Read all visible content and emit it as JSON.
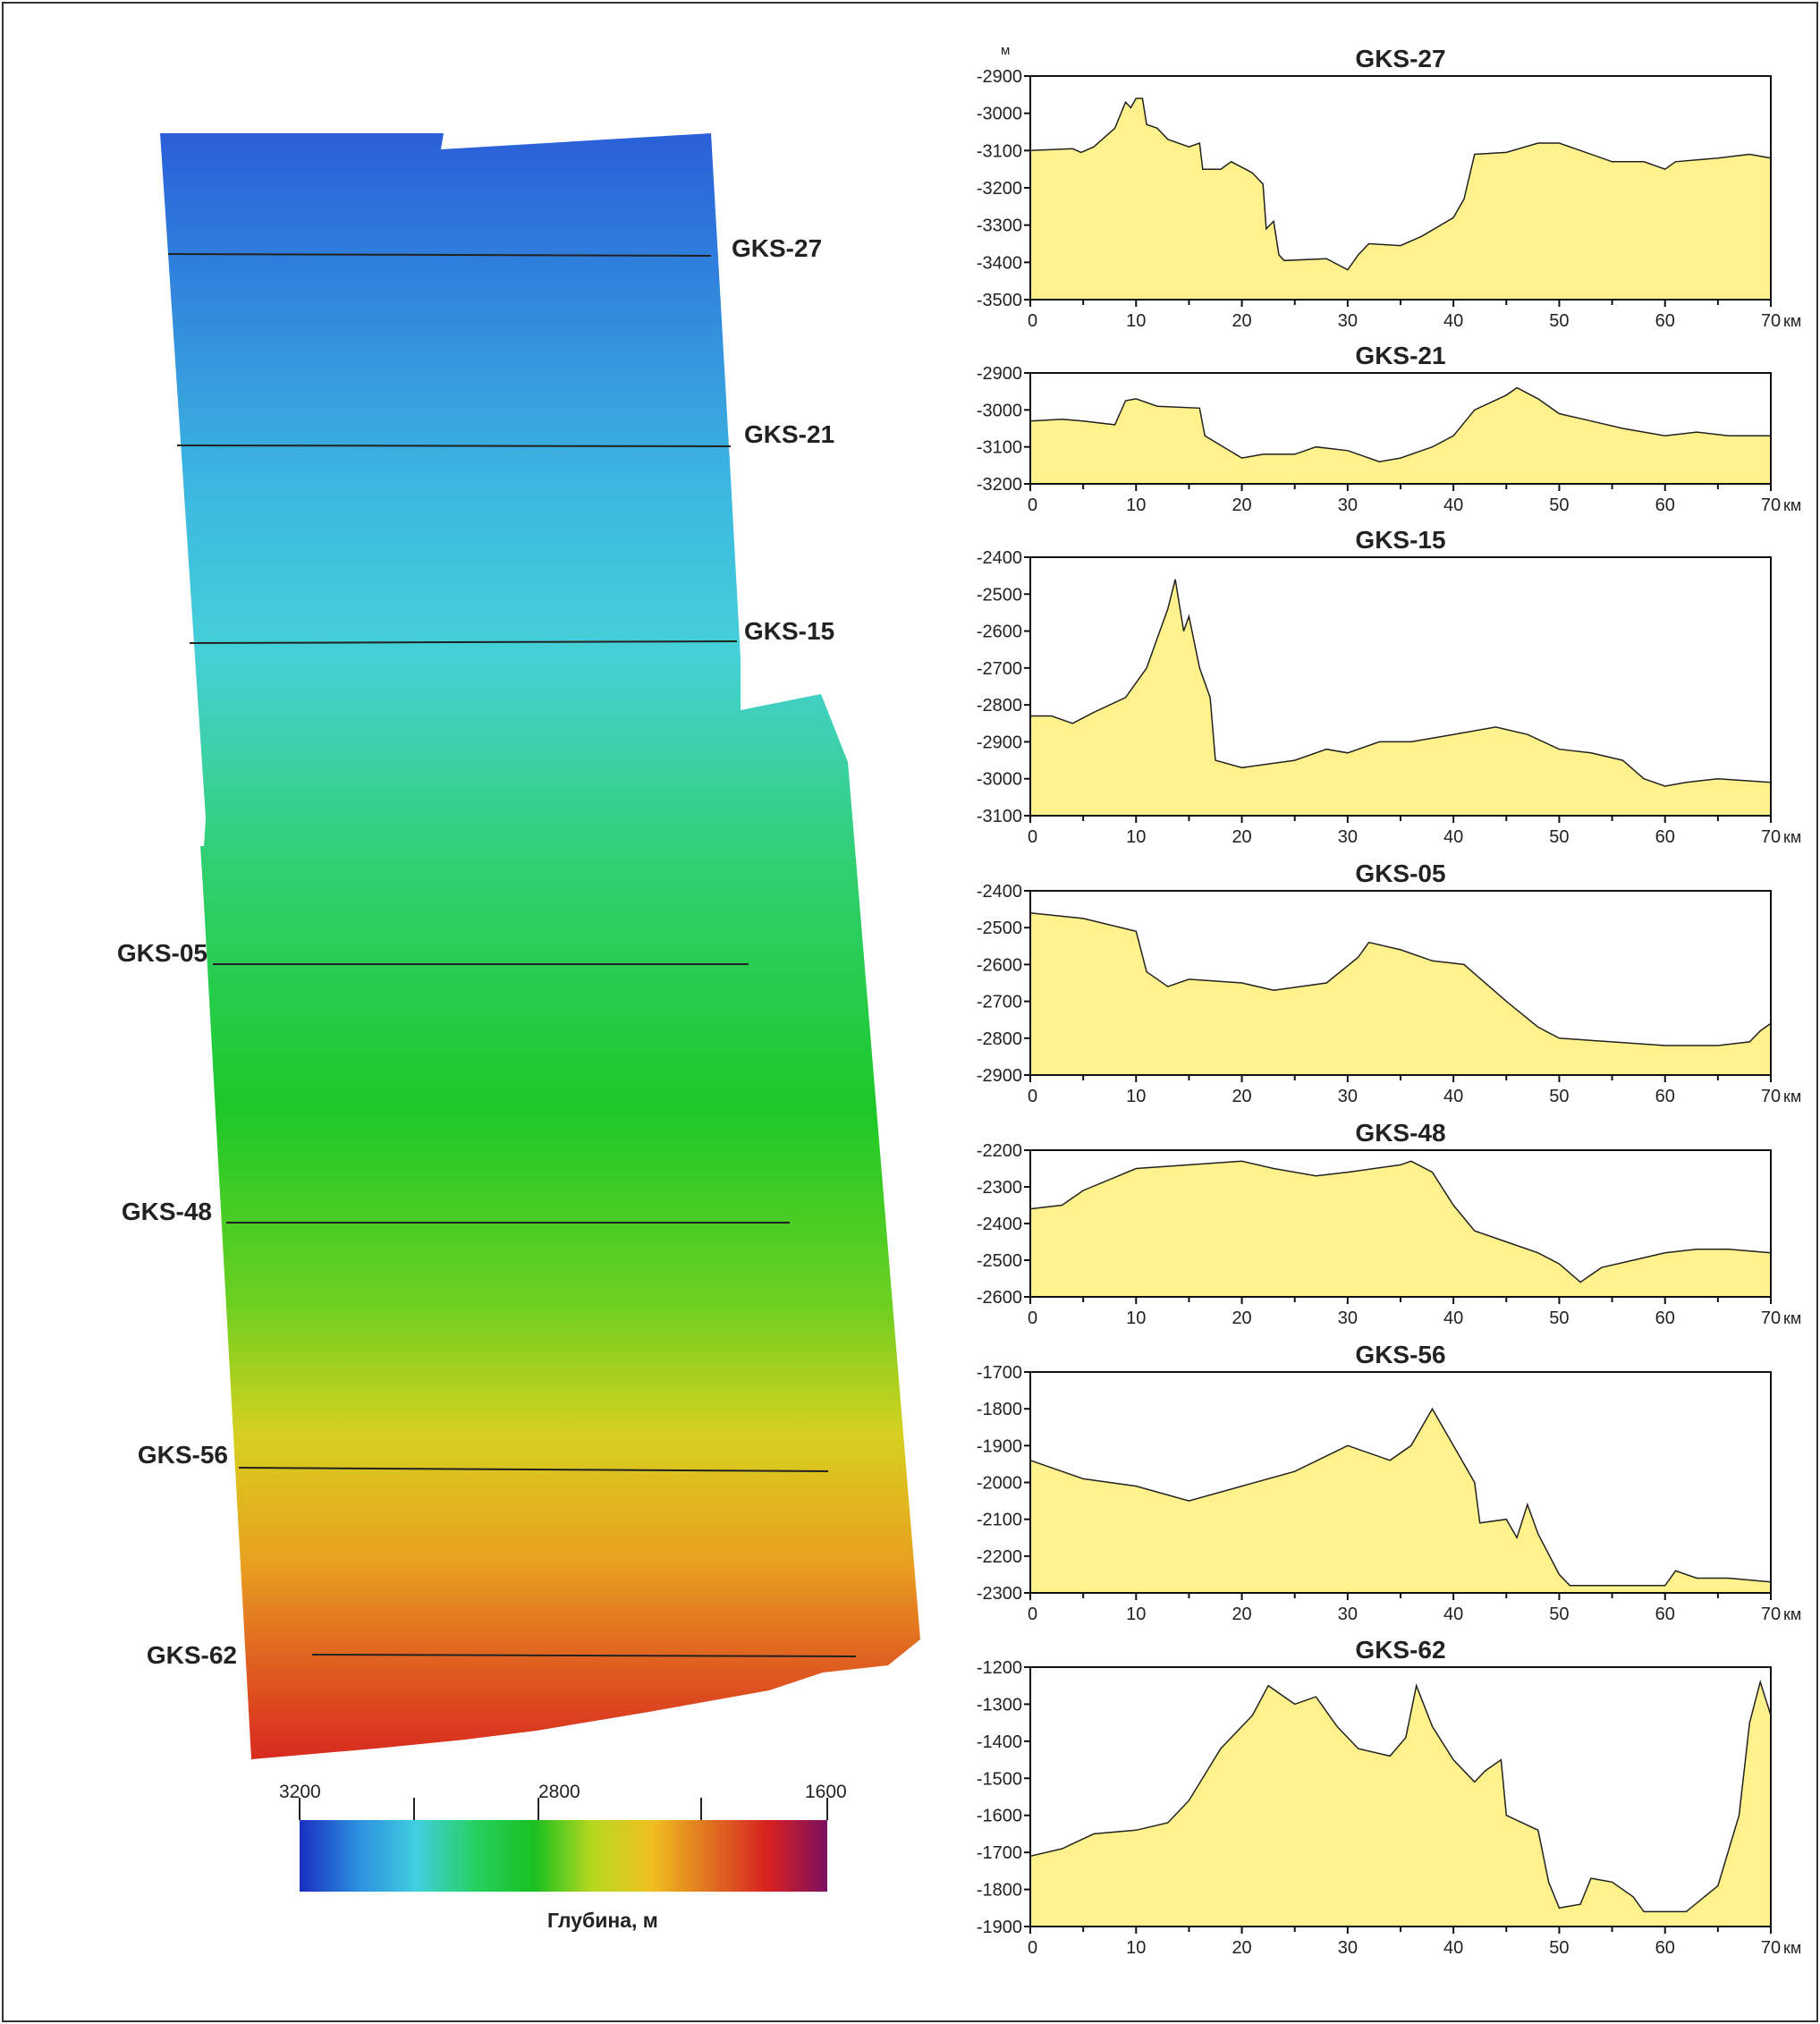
{
  "map": {
    "profiles": [
      "GKS-27",
      "GKS-21",
      "GKS-15",
      "GKS-05",
      "GKS-48",
      "GKS-56",
      "GKS-62"
    ],
    "colorbar": {
      "ticks": [
        "3200",
        "2800",
        "1600"
      ],
      "label": "Глубина, м",
      "colors": [
        "#1a2fc0",
        "#2c8fe0",
        "#40cfe0",
        "#26d060",
        "#18c020",
        "#b8d820",
        "#f0c020",
        "#e07020",
        "#d82020",
        "#7a1060"
      ]
    }
  },
  "unit_label": "м",
  "x_unit": "км",
  "colors": {
    "fill": "#fff28c",
    "stroke": "#222222"
  },
  "chart_data": [
    {
      "type": "area",
      "title": "GKS-27",
      "xlim": [
        0,
        70
      ],
      "ylim": [
        -3500,
        -2900
      ],
      "points": [
        [
          0,
          -3100
        ],
        [
          4,
          -3095
        ],
        [
          4.8,
          -3105
        ],
        [
          6,
          -3090
        ],
        [
          8,
          -3040
        ],
        [
          9,
          -2970
        ],
        [
          9.5,
          -2985
        ],
        [
          10,
          -2960
        ],
        [
          10.6,
          -2960
        ],
        [
          11,
          -3030
        ],
        [
          12,
          -3040
        ],
        [
          13,
          -3070
        ],
        [
          15,
          -3090
        ],
        [
          16,
          -3080
        ],
        [
          16.3,
          -3150
        ],
        [
          18,
          -3150
        ],
        [
          19,
          -3130
        ],
        [
          21,
          -3160
        ],
        [
          22,
          -3190
        ],
        [
          22.3,
          -3310
        ],
        [
          23,
          -3290
        ],
        [
          23.5,
          -3380
        ],
        [
          24,
          -3395
        ],
        [
          28,
          -3390
        ],
        [
          30,
          -3420
        ],
        [
          31,
          -3380
        ],
        [
          32,
          -3350
        ],
        [
          35,
          -3355
        ],
        [
          37,
          -3330
        ],
        [
          40,
          -3280
        ],
        [
          41,
          -3230
        ],
        [
          42,
          -3110
        ],
        [
          45,
          -3105
        ],
        [
          48,
          -3080
        ],
        [
          50,
          -3080
        ],
        [
          52,
          -3100
        ],
        [
          55,
          -3130
        ],
        [
          58,
          -3130
        ],
        [
          60,
          -3150
        ],
        [
          61,
          -3130
        ],
        [
          65,
          -3120
        ],
        [
          68,
          -3110
        ],
        [
          70,
          -3120
        ]
      ]
    },
    {
      "type": "area",
      "title": "GKS-21",
      "xlim": [
        0,
        70
      ],
      "ylim": [
        -3200,
        -2900
      ],
      "points": [
        [
          0,
          -3030
        ],
        [
          3,
          -3025
        ],
        [
          5,
          -3030
        ],
        [
          8,
          -3040
        ],
        [
          9,
          -2975
        ],
        [
          10,
          -2970
        ],
        [
          12,
          -2990
        ],
        [
          16,
          -2995
        ],
        [
          16.5,
          -3070
        ],
        [
          20,
          -3130
        ],
        [
          22,
          -3120
        ],
        [
          25,
          -3120
        ],
        [
          27,
          -3100
        ],
        [
          30,
          -3110
        ],
        [
          33,
          -3140
        ],
        [
          35,
          -3130
        ],
        [
          38,
          -3100
        ],
        [
          40,
          -3070
        ],
        [
          42,
          -3000
        ],
        [
          45,
          -2960
        ],
        [
          46,
          -2940
        ],
        [
          48,
          -2970
        ],
        [
          50,
          -3010
        ],
        [
          53,
          -3030
        ],
        [
          56,
          -3050
        ],
        [
          60,
          -3070
        ],
        [
          63,
          -3060
        ],
        [
          66,
          -3070
        ],
        [
          70,
          -3070
        ]
      ]
    },
    {
      "type": "area",
      "title": "GKS-15",
      "xlim": [
        0,
        70
      ],
      "ylim": [
        -3100,
        -2400
      ],
      "points": [
        [
          0,
          -2830
        ],
        [
          2,
          -2830
        ],
        [
          4,
          -2850
        ],
        [
          6,
          -2820
        ],
        [
          9,
          -2780
        ],
        [
          11,
          -2700
        ],
        [
          12,
          -2620
        ],
        [
          13,
          -2540
        ],
        [
          13.7,
          -2460
        ],
        [
          14.5,
          -2600
        ],
        [
          15,
          -2560
        ],
        [
          16,
          -2700
        ],
        [
          17,
          -2780
        ],
        [
          17.5,
          -2950
        ],
        [
          20,
          -2970
        ],
        [
          25,
          -2950
        ],
        [
          28,
          -2920
        ],
        [
          30,
          -2930
        ],
        [
          33,
          -2900
        ],
        [
          36,
          -2900
        ],
        [
          40,
          -2880
        ],
        [
          44,
          -2860
        ],
        [
          47,
          -2880
        ],
        [
          50,
          -2920
        ],
        [
          53,
          -2930
        ],
        [
          56,
          -2950
        ],
        [
          58,
          -3000
        ],
        [
          60,
          -3020
        ],
        [
          62,
          -3010
        ],
        [
          65,
          -3000
        ],
        [
          70,
          -3010
        ]
      ]
    },
    {
      "type": "area",
      "title": "GKS-05",
      "xlim": [
        0,
        70
      ],
      "ylim": [
        -2900,
        -2400
      ],
      "points": [
        [
          0,
          -2460
        ],
        [
          5,
          -2475
        ],
        [
          10,
          -2510
        ],
        [
          11,
          -2620
        ],
        [
          13,
          -2660
        ],
        [
          15,
          -2640
        ],
        [
          20,
          -2650
        ],
        [
          23,
          -2670
        ],
        [
          28,
          -2650
        ],
        [
          31,
          -2580
        ],
        [
          32,
          -2540
        ],
        [
          35,
          -2560
        ],
        [
          38,
          -2590
        ],
        [
          41,
          -2600
        ],
        [
          45,
          -2700
        ],
        [
          48,
          -2770
        ],
        [
          50,
          -2800
        ],
        [
          55,
          -2810
        ],
        [
          60,
          -2820
        ],
        [
          65,
          -2820
        ],
        [
          68,
          -2810
        ],
        [
          69,
          -2780
        ],
        [
          70,
          -2760
        ]
      ]
    },
    {
      "type": "area",
      "title": "GKS-48",
      "xlim": [
        0,
        70
      ],
      "ylim": [
        -2600,
        -2200
      ],
      "points": [
        [
          0,
          -2360
        ],
        [
          3,
          -2350
        ],
        [
          5,
          -2310
        ],
        [
          10,
          -2250
        ],
        [
          15,
          -2240
        ],
        [
          20,
          -2230
        ],
        [
          23,
          -2250
        ],
        [
          27,
          -2270
        ],
        [
          30,
          -2260
        ],
        [
          35,
          -2240
        ],
        [
          36,
          -2230
        ],
        [
          38,
          -2260
        ],
        [
          40,
          -2350
        ],
        [
          42,
          -2420
        ],
        [
          45,
          -2450
        ],
        [
          48,
          -2480
        ],
        [
          50,
          -2510
        ],
        [
          52,
          -2560
        ],
        [
          54,
          -2520
        ],
        [
          57,
          -2500
        ],
        [
          60,
          -2480
        ],
        [
          63,
          -2470
        ],
        [
          66,
          -2470
        ],
        [
          70,
          -2480
        ]
      ]
    },
    {
      "type": "area",
      "title": "GKS-56",
      "xlim": [
        0,
        70
      ],
      "ylim": [
        -2300,
        -1700
      ],
      "points": [
        [
          0,
          -1940
        ],
        [
          5,
          -1990
        ],
        [
          10,
          -2010
        ],
        [
          15,
          -2050
        ],
        [
          20,
          -2010
        ],
        [
          25,
          -1970
        ],
        [
          30,
          -1900
        ],
        [
          34,
          -1940
        ],
        [
          36,
          -1900
        ],
        [
          38,
          -1800
        ],
        [
          40,
          -1900
        ],
        [
          42,
          -2000
        ],
        [
          42.5,
          -2110
        ],
        [
          45,
          -2100
        ],
        [
          46,
          -2150
        ],
        [
          47,
          -2060
        ],
        [
          48,
          -2140
        ],
        [
          50,
          -2250
        ],
        [
          51,
          -2280
        ],
        [
          55,
          -2280
        ],
        [
          60,
          -2280
        ],
        [
          61,
          -2240
        ],
        [
          63,
          -2260
        ],
        [
          66,
          -2260
        ],
        [
          70,
          -2270
        ]
      ]
    },
    {
      "type": "area",
      "title": "GKS-62",
      "xlim": [
        0,
        70
      ],
      "ylim": [
        -1900,
        -1200
      ],
      "points": [
        [
          0,
          -1710
        ],
        [
          3,
          -1690
        ],
        [
          6,
          -1650
        ],
        [
          10,
          -1640
        ],
        [
          13,
          -1620
        ],
        [
          15,
          -1560
        ],
        [
          18,
          -1420
        ],
        [
          21,
          -1330
        ],
        [
          22.5,
          -1250
        ],
        [
          25,
          -1300
        ],
        [
          27,
          -1280
        ],
        [
          29,
          -1360
        ],
        [
          31,
          -1420
        ],
        [
          34,
          -1440
        ],
        [
          35.5,
          -1390
        ],
        [
          36.5,
          -1250
        ],
        [
          38,
          -1360
        ],
        [
          40,
          -1450
        ],
        [
          42,
          -1510
        ],
        [
          43,
          -1480
        ],
        [
          44.5,
          -1450
        ],
        [
          45,
          -1600
        ],
        [
          48,
          -1640
        ],
        [
          49,
          -1780
        ],
        [
          50,
          -1850
        ],
        [
          52,
          -1840
        ],
        [
          53,
          -1770
        ],
        [
          55,
          -1780
        ],
        [
          57,
          -1820
        ],
        [
          58,
          -1860
        ],
        [
          62,
          -1860
        ],
        [
          65,
          -1790
        ],
        [
          67,
          -1600
        ],
        [
          68,
          -1350
        ],
        [
          69,
          -1240
        ],
        [
          70,
          -1330
        ]
      ]
    }
  ]
}
